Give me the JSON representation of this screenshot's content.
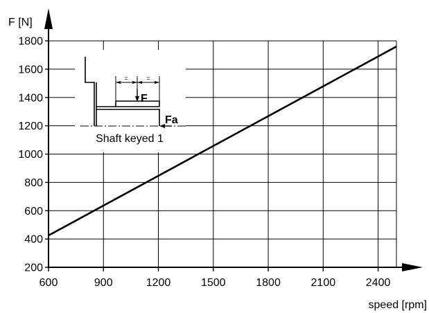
{
  "chart_data": {
    "type": "line",
    "title": "",
    "xlabel": "speed [rpm]",
    "ylabel": "F [N]",
    "xlim": [
      600,
      2500
    ],
    "ylim": [
      200,
      1800
    ],
    "x_ticks": [
      600,
      900,
      1200,
      1500,
      1800,
      2100,
      2400
    ],
    "y_ticks": [
      200,
      400,
      600,
      800,
      1000,
      1200,
      1400,
      1600,
      1800
    ],
    "grid": true,
    "series": [
      {
        "x": [
          600,
          2500
        ],
        "y": [
          425,
          1760
        ],
        "color": "#000000"
      }
    ],
    "inset": {
      "caption": "Shaft keyed 1",
      "force_label": "F",
      "axial_force_label": "Fa",
      "equal_mark": "="
    }
  }
}
